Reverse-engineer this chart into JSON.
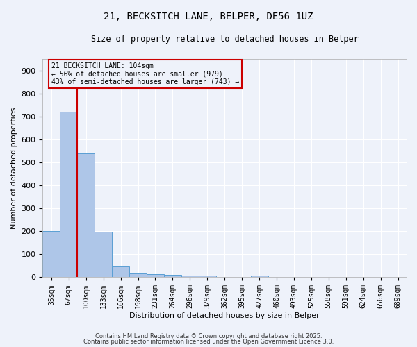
{
  "title1": "21, BECKSITCH LANE, BELPER, DE56 1UZ",
  "title2": "Size of property relative to detached houses in Belper",
  "xlabel": "Distribution of detached houses by size in Belper",
  "ylabel": "Number of detached properties",
  "categories": [
    "35sqm",
    "67sqm",
    "100sqm",
    "133sqm",
    "166sqm",
    "198sqm",
    "231sqm",
    "264sqm",
    "296sqm",
    "329sqm",
    "362sqm",
    "395sqm",
    "427sqm",
    "460sqm",
    "493sqm",
    "525sqm",
    "558sqm",
    "591sqm",
    "624sqm",
    "656sqm",
    "689sqm"
  ],
  "values": [
    200,
    720,
    540,
    197,
    47,
    18,
    13,
    11,
    8,
    7,
    0,
    0,
    7,
    0,
    0,
    0,
    0,
    0,
    0,
    0,
    0
  ],
  "bar_color": "#aec6e8",
  "bar_edge_color": "#5a9fd4",
  "property_line_x": 1.5,
  "property_line_color": "#cc0000",
  "annotation_title": "21 BECKSITCH LANE: 104sqm",
  "annotation_line2": "← 56% of detached houses are smaller (979)",
  "annotation_line3": "43% of semi-detached houses are larger (743) →",
  "annotation_box_color": "#cc0000",
  "ylim": [
    0,
    950
  ],
  "yticks": [
    0,
    100,
    200,
    300,
    400,
    500,
    600,
    700,
    800,
    900
  ],
  "background_color": "#eef2fa",
  "grid_color": "#ffffff",
  "footer1": "Contains HM Land Registry data © Crown copyright and database right 2025.",
  "footer2": "Contains public sector information licensed under the Open Government Licence 3.0."
}
